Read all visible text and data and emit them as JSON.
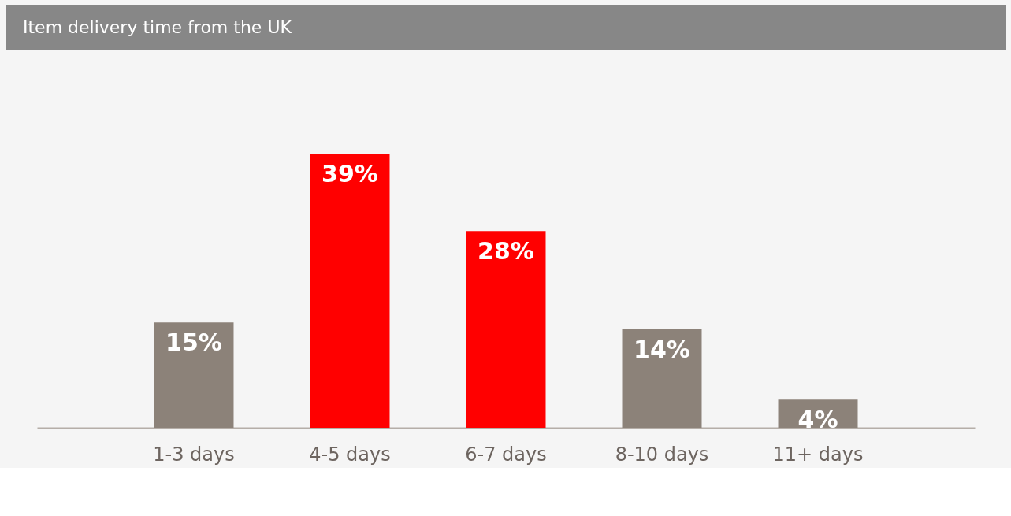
{
  "chart_data": {
    "type": "bar",
    "title": "Item delivery time from the UK",
    "categories": [
      "1-3 days",
      "4-5 days",
      "6-7 days",
      "8-10 days",
      "11+ days"
    ],
    "values": [
      15,
      39,
      28,
      14,
      4
    ],
    "value_labels": [
      "15%",
      "39%",
      "28%",
      "14%",
      "4%"
    ],
    "colors": [
      "#8c8279",
      "#ff0000",
      "#ff0000",
      "#8c8279",
      "#8c8279"
    ],
    "grid": false
  }
}
